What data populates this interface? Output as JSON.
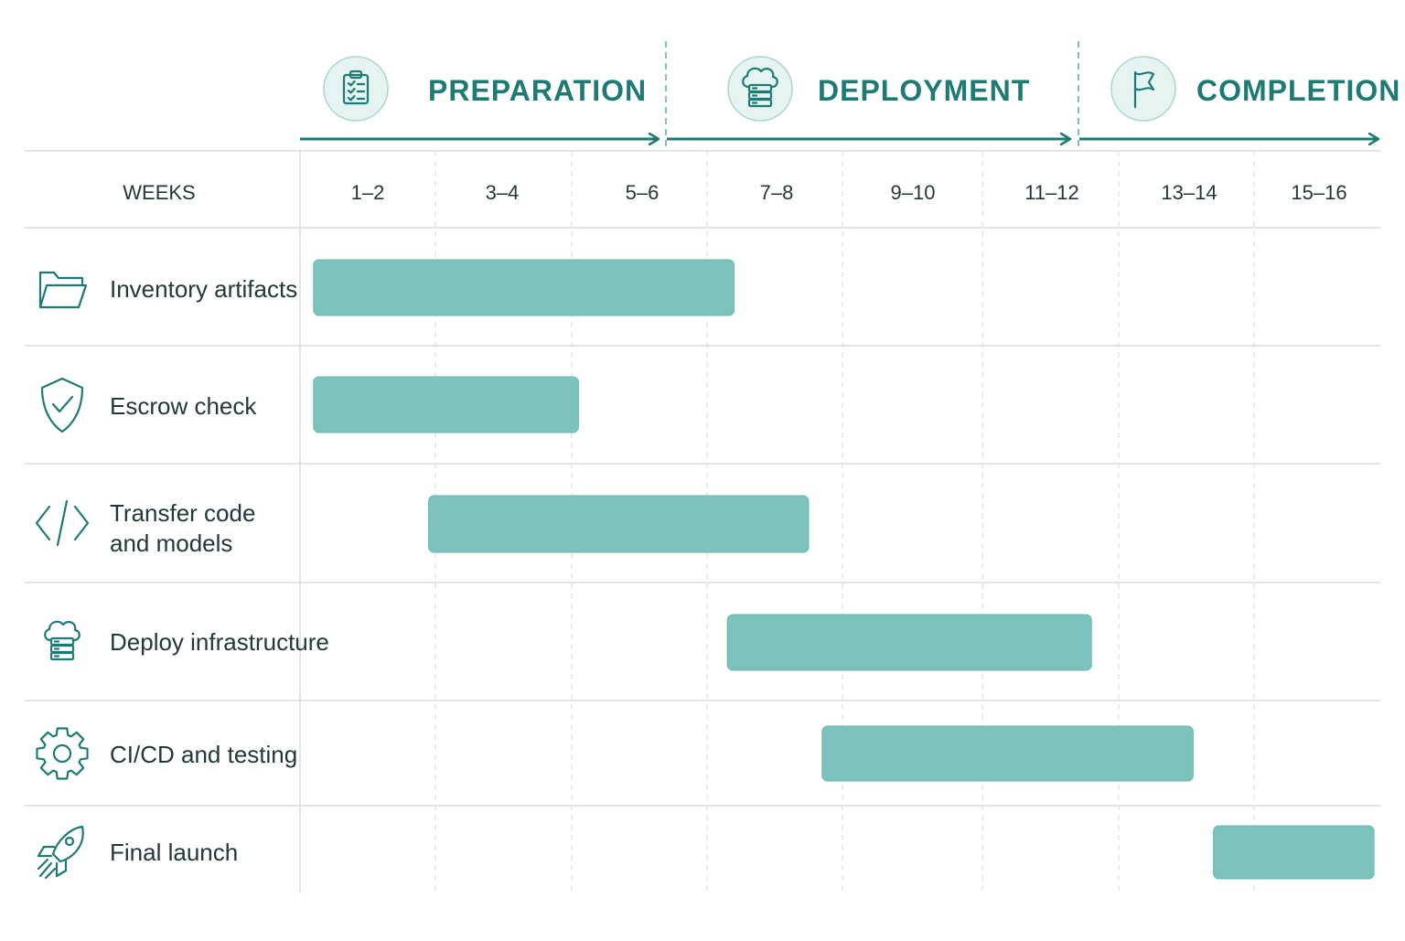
{
  "colors": {
    "accent": "#1e7a74",
    "bar": "#7cc3bd",
    "bar_stroke": "#6ab7b0",
    "icon_bg": "#e5f3f1",
    "grid": "#dcdcdc",
    "grid_dashed": "#e2e2e2",
    "text": "#22383d"
  },
  "phases": [
    {
      "title": "PREPARATION",
      "icon": "clipboard-checklist-icon",
      "start_col": 0,
      "end_col": 2
    },
    {
      "title": "DEPLOYMENT",
      "icon": "cloud-server-icon",
      "start_col": 3,
      "end_col": 5
    },
    {
      "title": "COMPLETION",
      "icon": "flag-icon",
      "start_col": 6,
      "end_col": 7
    }
  ],
  "header": {
    "weeks_label": "WEEKS"
  },
  "chart_data": {
    "type": "gantt",
    "x_categories": [
      "1–2",
      "3–4",
      "5–6",
      "7–8",
      "9–10",
      "11–12",
      "13–14",
      "15–16"
    ],
    "x_unit": "weeks",
    "tasks": [
      {
        "name": [
          "Inventory artifacts"
        ],
        "icon": "folder-icon",
        "start_week": 0.2,
        "end_week": 6.4
      },
      {
        "name": [
          "Escrow check"
        ],
        "icon": "shield-check-icon",
        "start_week": 0.2,
        "end_week": 4.1
      },
      {
        "name": [
          "Transfer code",
          "and models"
        ],
        "icon": "code-icon",
        "start_week": 1.9,
        "end_week": 7.5
      },
      {
        "name": [
          "Deploy infrastructure"
        ],
        "icon": "cloud-server-icon",
        "start_week": 6.3,
        "end_week": 11.6
      },
      {
        "name": [
          "CI/CD and testing"
        ],
        "icon": "gear-icon",
        "start_week": 7.7,
        "end_week": 13.1
      },
      {
        "name": [
          "Final launch"
        ],
        "icon": "rocket-icon",
        "start_week": 13.4,
        "end_week": 15.9
      }
    ]
  }
}
